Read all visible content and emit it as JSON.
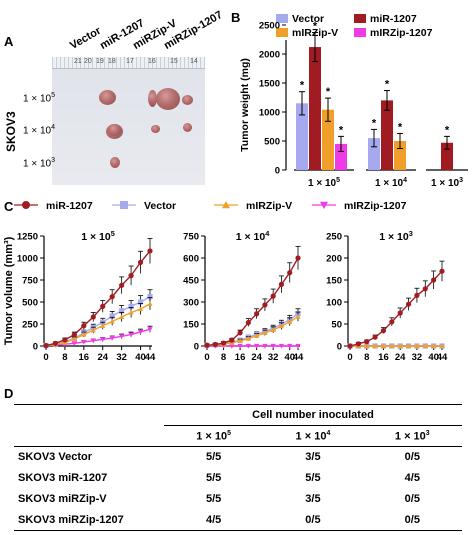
{
  "panels": {
    "a": "A",
    "b": "B",
    "c": "C",
    "d": "D"
  },
  "panel_a": {
    "cell_line": "SKOV3",
    "columns": [
      "Vector",
      "miR-1207",
      "miRZip-V",
      "miRZip-1207"
    ],
    "rows": [
      "1 × 10",
      "1 × 10",
      "1 × 10"
    ],
    "row_exps": [
      "5",
      "4",
      "3"
    ],
    "ruler_marks": [
      "21",
      "20",
      "19",
      "18",
      "17",
      "16",
      "15",
      "14"
    ]
  },
  "chart_data": [
    {
      "type": "bar",
      "panel": "B",
      "ylabel": "Tumor weight (mg)",
      "ylim": [
        0,
        2500
      ],
      "yticks": [
        0,
        500,
        1000,
        1500,
        2000,
        2500
      ],
      "category_base": "1 × 10",
      "categories": [
        "1 × 10^5",
        "1 × 10^4",
        "1 × 10^3"
      ],
      "category_exps": [
        "5",
        "4",
        "3"
      ],
      "legend_position": "top",
      "series": [
        {
          "name": "Vector",
          "color": "#a7a9ee",
          "values": [
            1150,
            550,
            null
          ],
          "errors": [
            200,
            150,
            null
          ],
          "stars": [
            "*",
            "*",
            ""
          ]
        },
        {
          "name": "miR-1207",
          "color": "#a01c22",
          "values": [
            2120,
            1200,
            470
          ],
          "errors": [
            250,
            170,
            110
          ],
          "stars": [
            "*",
            "*",
            "*"
          ]
        },
        {
          "name": "mIRZip-V",
          "color": "#f0a02a",
          "values": [
            1040,
            500,
            null
          ],
          "errors": [
            200,
            130,
            null
          ],
          "stars": [
            "*",
            "*",
            ""
          ]
        },
        {
          "name": "mIRZip-1207",
          "color": "#ee3be6",
          "values": [
            450,
            null,
            null
          ],
          "errors": [
            130,
            null,
            null
          ],
          "stars": [
            "*",
            "",
            ""
          ]
        }
      ]
    },
    {
      "type": "line",
      "panel": "C",
      "ylabel": "Tumor volume (mm³)",
      "x": [
        0,
        4,
        8,
        12,
        16,
        20,
        24,
        28,
        32,
        36,
        40,
        44
      ],
      "xticks": [
        0,
        8,
        16,
        24,
        32,
        40,
        44
      ],
      "legend_position": "top",
      "legend": [
        {
          "name": "miR-1207",
          "color": "#a01c22",
          "marker": "circle"
        },
        {
          "name": "Vector",
          "color": "#a7a9ee",
          "marker": "square"
        },
        {
          "name": "mIRZip-V",
          "color": "#f0a02a",
          "marker": "triangle-up"
        },
        {
          "name": "mIRZip-1207",
          "color": "#ee3be6",
          "marker": "triangle-down"
        }
      ],
      "subplots": [
        {
          "title_exp": "5",
          "ylim": [
            0,
            1250
          ],
          "yticks": [
            0,
            250,
            500,
            750,
            1000,
            1250
          ],
          "series": {
            "miR-1207": [
              5,
              30,
              70,
              130,
              230,
              330,
              450,
              560,
              690,
              800,
              950,
              1080
            ],
            "Vector": [
              5,
              20,
              45,
              90,
              150,
              210,
              270,
              340,
              400,
              450,
              500,
              560
            ],
            "mIRZip-V": [
              5,
              18,
              40,
              80,
              130,
              180,
              230,
              280,
              330,
              380,
              420,
              480
            ],
            "mIRZip-1207": [
              5,
              10,
              20,
              30,
              45,
              60,
              75,
              90,
              110,
              130,
              160,
              190
            ]
          }
        },
        {
          "title_exp": "4",
          "ylim": [
            0,
            750
          ],
          "yticks": [
            0,
            150,
            300,
            450,
            600,
            750
          ],
          "series": {
            "miR-1207": [
              5,
              10,
              20,
              40,
              90,
              160,
              220,
              280,
              340,
              420,
              500,
              600
            ],
            "Vector": [
              5,
              8,
              15,
              25,
              40,
              60,
              80,
              100,
              120,
              150,
              180,
              220
            ],
            "mIRZip-V": [
              5,
              8,
              12,
              22,
              35,
              50,
              70,
              90,
              110,
              135,
              165,
              200
            ],
            "mIRZip-1207": [
              0,
              0,
              0,
              0,
              0,
              0,
              0,
              0,
              0,
              0,
              0,
              0
            ]
          }
        },
        {
          "title_exp": "3",
          "ylim": [
            0,
            250
          ],
          "yticks": [
            0,
            50,
            100,
            150,
            200,
            250
          ],
          "series": {
            "miR-1207": [
              0,
              5,
              10,
              20,
              35,
              55,
              75,
              95,
              115,
              130,
              150,
              170
            ],
            "Vector": [
              0,
              0,
              0,
              0,
              0,
              0,
              0,
              0,
              0,
              0,
              0,
              0
            ],
            "mIRZip-V": [
              0,
              0,
              0,
              0,
              0,
              0,
              0,
              0,
              0,
              0,
              0,
              0
            ],
            "mIRZip-1207": [
              0,
              0,
              0,
              0,
              0,
              0,
              0,
              0,
              0,
              0,
              0,
              0
            ]
          }
        }
      ]
    }
  ],
  "table": {
    "group_header": "Cell number inoculated",
    "col_base": "1 × 10",
    "col_exps": [
      "5",
      "4",
      "3"
    ],
    "rows": [
      {
        "label": "SKOV3 Vector",
        "values": [
          "5/5",
          "3/5",
          "0/5"
        ]
      },
      {
        "label": "SKOV3 miR-1207",
        "values": [
          "5/5",
          "5/5",
          "4/5"
        ]
      },
      {
        "label": "SKOV3 miRZip-V",
        "values": [
          "5/5",
          "3/5",
          "0/5"
        ]
      },
      {
        "label": "SKOV3 miRZip-1207",
        "values": [
          "4/5",
          "0/5",
          "0/5"
        ]
      }
    ]
  }
}
